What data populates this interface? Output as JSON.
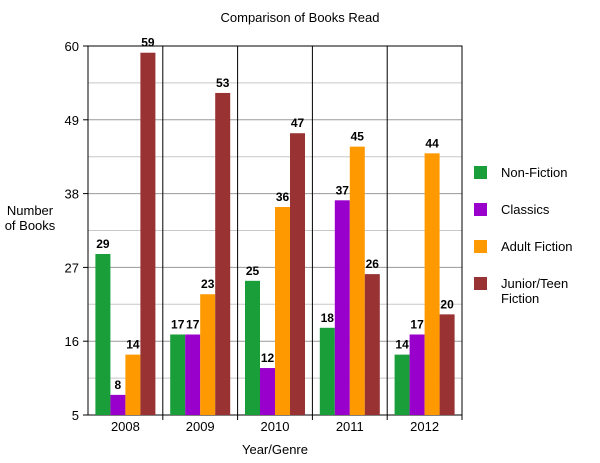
{
  "chart_data": {
    "type": "bar",
    "title": "Comparison of Books Read",
    "xlabel": "Year/Genre",
    "ylabel": "Number of Books",
    "categories": [
      "2008",
      "2009",
      "2010",
      "2011",
      "2012"
    ],
    "series": [
      {
        "name": "Non-Fiction",
        "color": "#1a9e3a",
        "values": [
          29,
          17,
          25,
          18,
          14
        ]
      },
      {
        "name": "Classics",
        "color": "#9900cc",
        "values": [
          8,
          17,
          12,
          37,
          17
        ]
      },
      {
        "name": "Adult Fiction",
        "color": "#ff9900",
        "values": [
          14,
          23,
          36,
          45,
          44
        ]
      },
      {
        "name": "Junior/Teen Fiction",
        "color": "#993333",
        "values": [
          59,
          53,
          47,
          26,
          20
        ]
      }
    ],
    "ylim": [
      5,
      60
    ],
    "yticks": [
      5,
      16,
      27,
      38,
      49,
      60
    ],
    "grid": true,
    "legend_position": "right"
  }
}
